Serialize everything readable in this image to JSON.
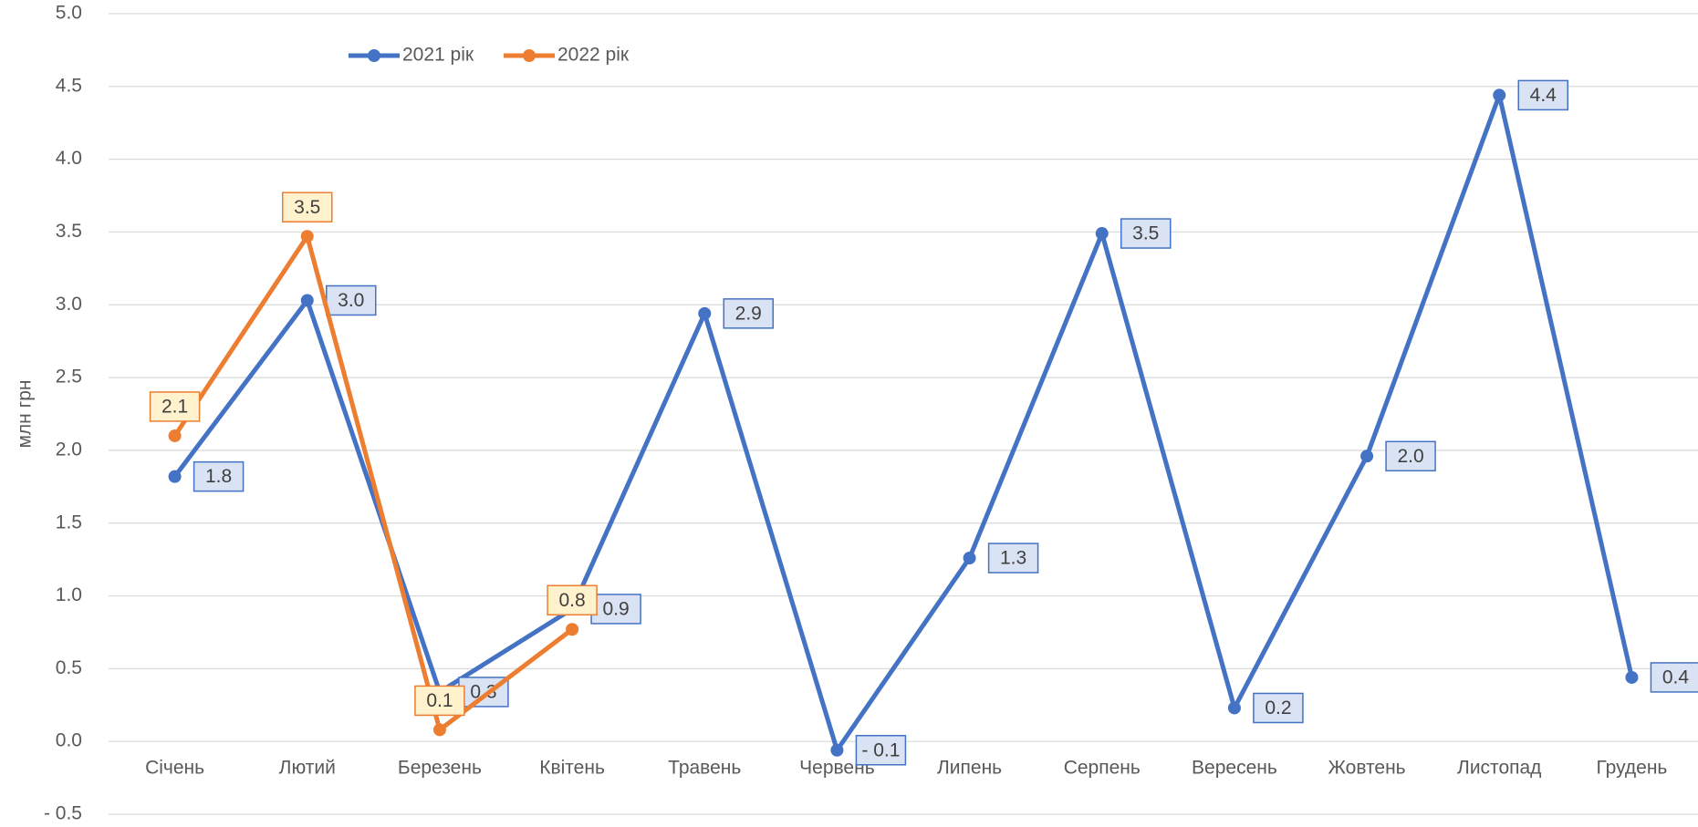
{
  "chart_data": {
    "type": "line",
    "y_label": "млн грн",
    "categories": [
      "Січень",
      "Лютий",
      "Березень",
      "Квітень",
      "Травень",
      "Червень",
      "Липень",
      "Серпень",
      "Вересень",
      "Жовтень",
      "Листопад",
      "Грудень"
    ],
    "series": [
      {
        "name": "2021 рік",
        "color": "#4472c4",
        "label_fill": "#dae3f3",
        "values": [
          1.82,
          3.03,
          0.34,
          0.91,
          2.94,
          -0.06,
          1.26,
          3.49,
          0.23,
          1.96,
          4.44,
          0.44
        ],
        "value_labels": [
          "1.8",
          "3.0",
          "0.3",
          "0.9",
          "2.9",
          "- 0.1",
          "1.3",
          "3.5",
          "0.2",
          "2.0",
          "4.4",
          "0.4"
        ]
      },
      {
        "name": "2022 рік",
        "color": "#ed7d31",
        "label_fill": "#fff2cc",
        "values": [
          2.1,
          3.47,
          0.08,
          0.77,
          null,
          null,
          null,
          null,
          null,
          null,
          null,
          null
        ],
        "value_labels": [
          "2.1",
          "3.5",
          "0.1",
          "0.8",
          null,
          null,
          null,
          null,
          null,
          null,
          null,
          null
        ]
      }
    ],
    "ylim": [
      -0.5,
      5.0
    ],
    "yticks": [
      {
        "value": -0.5,
        "label": "- 0.5"
      },
      {
        "value": 0,
        "label": "0.0"
      },
      0.5,
      {
        "value": 1,
        "label": "1.0"
      },
      1.5,
      {
        "value": 2,
        "label": "2.0"
      },
      2.5,
      {
        "value": 3,
        "label": "3.0"
      },
      3.5,
      {
        "value": 4,
        "label": "4.0"
      },
      4.5,
      {
        "value": 5,
        "label": "5.0"
      }
    ],
    "grid": true,
    "legend": "top"
  }
}
